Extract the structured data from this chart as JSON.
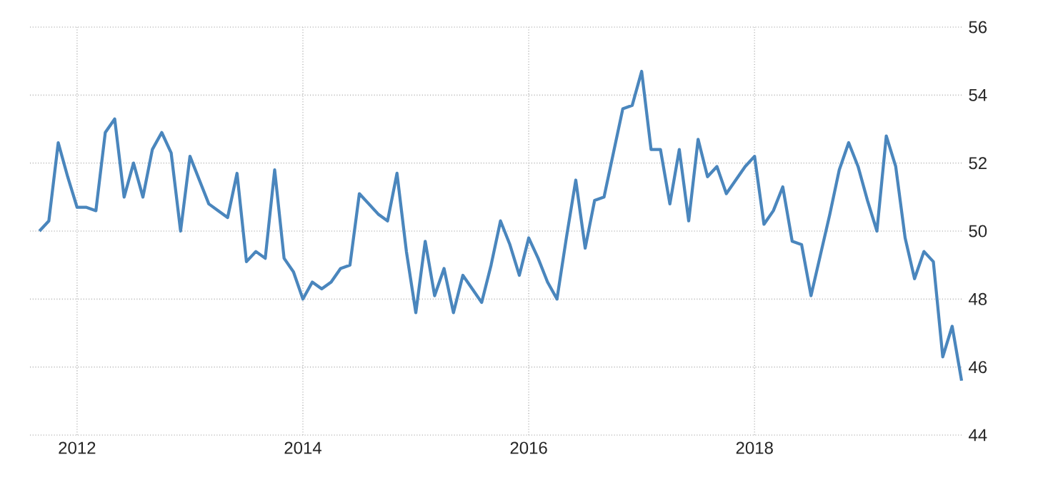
{
  "chart_data": {
    "type": "line",
    "color": "#4a86bd",
    "grid": true,
    "line_style": "solid",
    "xlim": [
      "2011-08",
      "2019-11"
    ],
    "xticks": [
      "2012",
      "2014",
      "2016",
      "2018"
    ],
    "ylim": [
      44,
      56
    ],
    "yticks": [
      44,
      46,
      48,
      50,
      52,
      54,
      56
    ],
    "x": [
      "2011-09",
      "2011-10",
      "2011-11",
      "2011-12",
      "2012-01",
      "2012-02",
      "2012-03",
      "2012-04",
      "2012-05",
      "2012-06",
      "2012-07",
      "2012-08",
      "2012-09",
      "2012-10",
      "2012-11",
      "2012-12",
      "2013-01",
      "2013-02",
      "2013-03",
      "2013-04",
      "2013-05",
      "2013-06",
      "2013-07",
      "2013-08",
      "2013-09",
      "2013-10",
      "2013-11",
      "2013-12",
      "2014-01",
      "2014-02",
      "2014-03",
      "2014-04",
      "2014-05",
      "2014-06",
      "2014-07",
      "2014-08",
      "2014-09",
      "2014-10",
      "2014-11",
      "2014-12",
      "2015-01",
      "2015-02",
      "2015-03",
      "2015-04",
      "2015-05",
      "2015-06",
      "2015-07",
      "2015-08",
      "2015-09",
      "2015-10",
      "2015-11",
      "2015-12",
      "2016-01",
      "2016-02",
      "2016-03",
      "2016-04",
      "2016-05",
      "2016-06",
      "2016-07",
      "2016-08",
      "2016-09",
      "2016-10",
      "2016-11",
      "2016-12",
      "2017-01",
      "2017-02",
      "2017-03",
      "2017-04",
      "2017-05",
      "2017-06",
      "2017-07",
      "2017-08",
      "2017-09",
      "2017-10",
      "2017-11",
      "2017-12",
      "2018-01",
      "2018-02",
      "2018-03",
      "2018-04",
      "2018-05",
      "2018-06",
      "2018-07",
      "2018-08",
      "2018-09",
      "2018-10",
      "2018-11",
      "2018-12",
      "2019-01",
      "2019-02",
      "2019-03",
      "2019-04",
      "2019-05",
      "2019-06",
      "2019-07",
      "2019-08",
      "2019-09",
      "2019-10",
      "2019-11"
    ],
    "values": [
      50.0,
      50.3,
      52.6,
      51.6,
      50.7,
      50.7,
      50.6,
      52.9,
      53.3,
      51.0,
      52.0,
      51.0,
      52.4,
      52.9,
      52.3,
      50.0,
      52.2,
      51.5,
      50.8,
      50.6,
      50.4,
      51.7,
      49.1,
      49.4,
      49.2,
      51.8,
      49.2,
      48.8,
      48.0,
      48.5,
      48.3,
      48.5,
      48.9,
      49.0,
      51.1,
      50.8,
      50.5,
      50.3,
      51.7,
      49.4,
      47.6,
      49.7,
      48.1,
      48.9,
      47.6,
      48.7,
      48.3,
      47.9,
      49.0,
      50.3,
      49.6,
      48.7,
      49.8,
      49.2,
      48.5,
      48.0,
      49.8,
      51.5,
      49.5,
      50.9,
      51.0,
      52.3,
      53.6,
      53.7,
      54.7,
      52.4,
      52.4,
      50.8,
      52.4,
      50.3,
      52.7,
      51.6,
      51.9,
      51.1,
      51.5,
      51.9,
      52.2,
      50.2,
      50.6,
      51.3,
      49.7,
      49.6,
      48.1,
      49.3,
      50.5,
      51.8,
      52.6,
      51.9,
      50.9,
      50.0,
      52.8,
      51.9,
      49.8,
      48.6,
      49.4,
      49.1,
      46.3,
      47.2,
      45.6
    ]
  }
}
